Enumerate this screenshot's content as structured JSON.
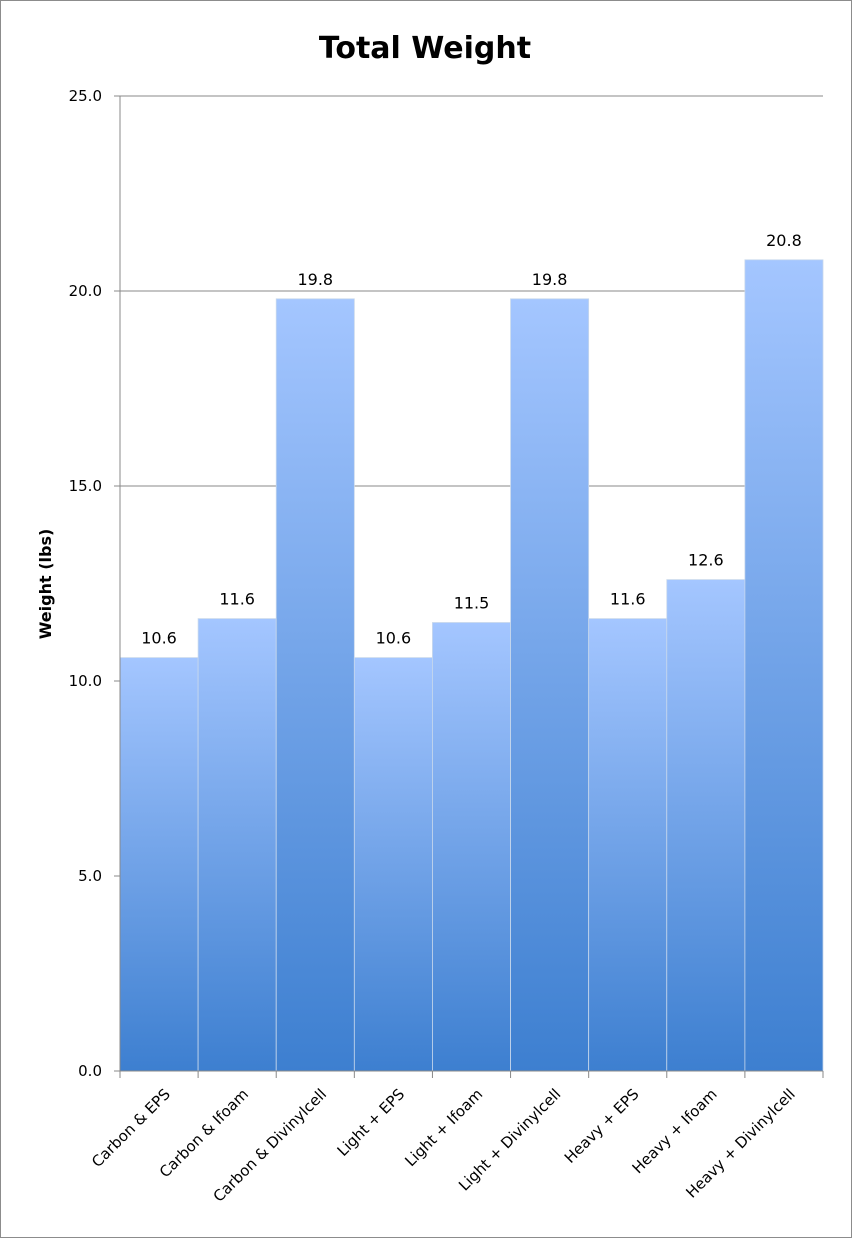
{
  "chart_data": {
    "type": "bar",
    "title": "Total Weight",
    "xlabel": "",
    "ylabel": "Weight (lbs)",
    "categories": [
      "Carbon & EPS",
      "Carbon & Ifoam",
      "Carbon & Divinylcell",
      "Light + EPS",
      "Light + Ifoam",
      "Light + Divinylcell",
      "Heavy + EPS",
      "Heavy + Ifoam",
      "Heavy + Divinylcell"
    ],
    "values": [
      10.6,
      11.6,
      19.8,
      10.6,
      11.5,
      19.8,
      11.6,
      12.6,
      20.8
    ],
    "data_labels": [
      "10.6",
      "11.6",
      "19.8",
      "10.6",
      "11.5",
      "19.8",
      "11.6",
      "12.6",
      "20.8"
    ],
    "ylim": [
      0,
      25
    ],
    "yticks": [
      0,
      5,
      10,
      15,
      20,
      25
    ],
    "ytick_labels": [
      "0.0",
      "5.0",
      "10.0",
      "15.0",
      "20.0",
      "25.0"
    ],
    "grid": true,
    "legend": "none",
    "colors": {
      "bar_top": "#a4c6ff",
      "bar_bottom": "#3d7fd0",
      "grid": "#888888",
      "axis": "#888888"
    }
  }
}
